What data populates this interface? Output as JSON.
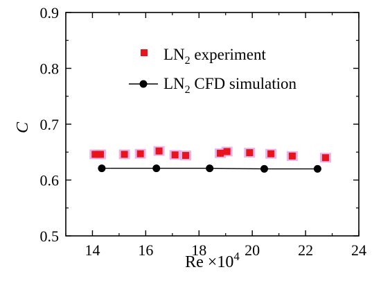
{
  "chart_data": {
    "type": "scatter",
    "x_label": "Re ×10",
    "x_label_exponent": "4",
    "y_label": "C",
    "xlim": [
      13,
      24
    ],
    "ylim": [
      0.5,
      0.9
    ],
    "x_ticks": [
      14,
      16,
      18,
      20,
      22,
      24
    ],
    "y_ticks": [
      0.5,
      0.6,
      0.7,
      0.8,
      0.9
    ],
    "x_tick_labels": [
      "14",
      "16",
      "18",
      "20",
      "22",
      "24"
    ],
    "y_tick_labels": [
      "0.5",
      "0.6",
      "0.7",
      "0.8",
      "0.9"
    ],
    "grid": false,
    "legend_position": "top-right",
    "series": [
      {
        "name": "LN₂ experiment",
        "legend_base": "LN",
        "legend_sub": "2",
        "legend_rest": " experiment",
        "marker": "square",
        "line": false,
        "color": "#e8141b",
        "halo_color": "#e6a6e8",
        "points": [
          [
            14.1,
            0.646
          ],
          [
            14.3,
            0.646
          ],
          [
            15.2,
            0.646
          ],
          [
            15.8,
            0.647
          ],
          [
            16.5,
            0.652
          ],
          [
            17.1,
            0.645
          ],
          [
            17.5,
            0.644
          ],
          [
            18.8,
            0.648
          ],
          [
            19.05,
            0.651
          ],
          [
            19.9,
            0.649
          ],
          [
            20.7,
            0.647
          ],
          [
            21.5,
            0.643
          ],
          [
            22.75,
            0.64
          ]
        ]
      },
      {
        "name": "LN₂ CFD simulation",
        "legend_base": "LN",
        "legend_sub": "2",
        "legend_rest": " CFD simulation",
        "marker": "circle",
        "line": true,
        "color": "#000000",
        "points": [
          [
            14.35,
            0.621
          ],
          [
            16.4,
            0.621
          ],
          [
            18.4,
            0.621
          ],
          [
            20.45,
            0.62
          ],
          [
            22.45,
            0.62
          ]
        ]
      }
    ]
  }
}
